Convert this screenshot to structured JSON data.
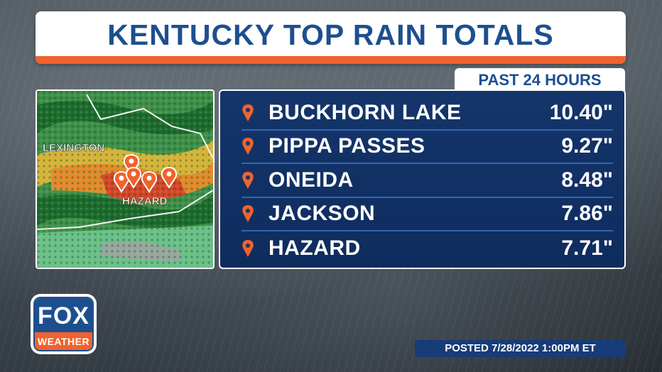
{
  "title": "KENTUCKY TOP RAIN TOTALS",
  "subtitle": "PAST 24 HOURS",
  "map": {
    "labels": {
      "city_1": "LEXINGTON",
      "city_2": "HAZARD"
    }
  },
  "totals": [
    {
      "location": "BUCKHORN LAKE",
      "value": "10.40\""
    },
    {
      "location": "PIPPA PASSES",
      "value": "9.27\""
    },
    {
      "location": "ONEIDA",
      "value": "8.48\""
    },
    {
      "location": "JACKSON",
      "value": "7.86\""
    },
    {
      "location": "HAZARD",
      "value": "7.71\""
    }
  ],
  "logo": {
    "top": "FOX",
    "bottom": "WEATHER"
  },
  "posted": "POSTED 7/28/2022 1:00PM ET",
  "colors": {
    "brand_blue": "#1d4f8f",
    "accent_orange": "#f0622e",
    "panel_navy": "#0f2c5e"
  }
}
